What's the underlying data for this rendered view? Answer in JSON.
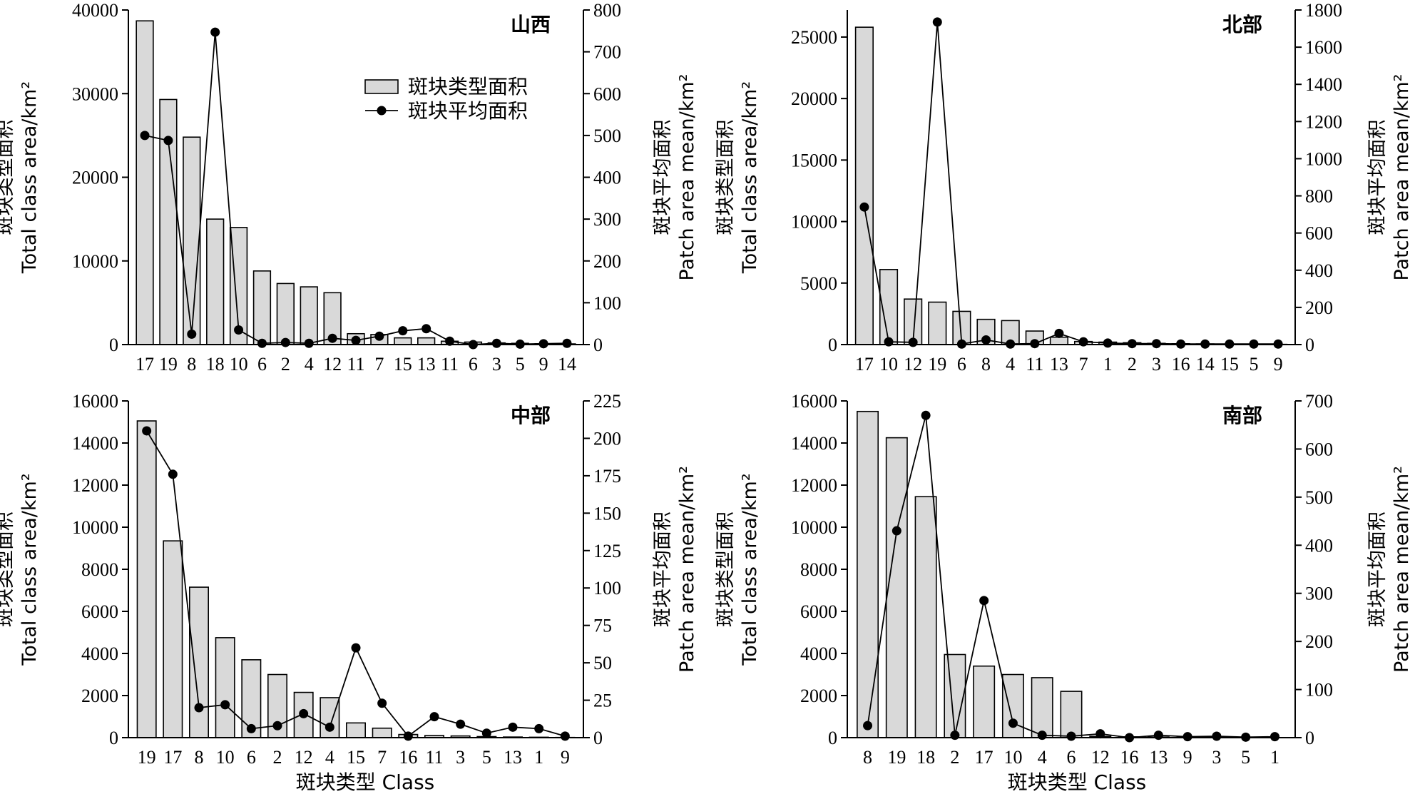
{
  "figure": {
    "x_title": "斑块类型 Class",
    "legend": {
      "bars_label": "斑块类型面积",
      "line_label": "斑块平均面积"
    }
  },
  "chart_data": [
    {
      "type": "bar",
      "title": "山西",
      "categories": [
        "17",
        "19",
        "8",
        "18",
        "10",
        "6",
        "2",
        "4",
        "12",
        "11",
        "7",
        "15",
        "13",
        "11",
        "6",
        "3",
        "5",
        "9",
        "14"
      ],
      "series": [
        {
          "name": "斑块类型面积",
          "axis": "left",
          "values": [
            38700,
            29300,
            24800,
            15000,
            14000,
            8800,
            7300,
            6900,
            6200,
            1300,
            1200,
            800,
            800,
            400,
            300,
            200,
            150,
            100,
            80
          ]
        },
        {
          "name": "斑块平均面积",
          "axis": "right",
          "type": "line",
          "values": [
            500,
            488,
            25,
            747,
            35,
            3,
            5,
            3,
            15,
            10,
            20,
            33,
            38,
            8,
            0,
            3,
            1,
            2,
            3
          ]
        }
      ],
      "ylabel": [
        "斑块类型面积",
        "Total class area/km²"
      ],
      "y2label": [
        "斑块平均面积",
        "Patch area mean/km²"
      ],
      "ylim": [
        0,
        40000
      ],
      "yticks": [
        0,
        10000,
        20000,
        30000,
        40000
      ],
      "y2lim": [
        0,
        800
      ],
      "y2ticks": [
        0,
        100,
        200,
        300,
        400,
        500,
        600,
        700,
        800
      ],
      "legend": "top-center"
    },
    {
      "type": "bar",
      "title": "北部",
      "categories": [
        "17",
        "10",
        "12",
        "19",
        "6",
        "8",
        "4",
        "11",
        "13",
        "7",
        "1",
        "2",
        "3",
        "16",
        "14",
        "15",
        "5",
        "9"
      ],
      "series": [
        {
          "name": "斑块类型面积",
          "axis": "left",
          "values": [
            25800,
            6100,
            3700,
            3450,
            2700,
            2050,
            1950,
            1100,
            600,
            250,
            200,
            150,
            100,
            70,
            50,
            40,
            30,
            20
          ]
        },
        {
          "name": "斑块平均面积",
          "axis": "right",
          "type": "line",
          "values": [
            740,
            15,
            12,
            1735,
            3,
            25,
            3,
            5,
            60,
            15,
            8,
            5,
            5,
            3,
            3,
            3,
            3,
            3
          ]
        }
      ],
      "ylabel": [
        "斑块类型面积",
        "Total class area/km²"
      ],
      "y2label": [
        "斑块平均面积",
        "Patch area mean/km²"
      ],
      "ylim": [
        0,
        27200
      ],
      "yticks": [
        0,
        5000,
        10000,
        15000,
        20000,
        25000
      ],
      "y2lim": [
        0,
        1800
      ],
      "y2ticks": [
        0,
        200,
        400,
        600,
        800,
        1000,
        1200,
        1400,
        1600,
        1800
      ]
    },
    {
      "type": "bar",
      "title": "中部",
      "categories": [
        "19",
        "17",
        "8",
        "10",
        "6",
        "2",
        "12",
        "4",
        "15",
        "7",
        "16",
        "11",
        "3",
        "5",
        "13",
        "1",
        "9"
      ],
      "series": [
        {
          "name": "斑块类型面积",
          "axis": "left",
          "values": [
            15050,
            9350,
            7150,
            4750,
            3700,
            3000,
            2150,
            1900,
            700,
            450,
            150,
            100,
            80,
            50,
            30,
            20,
            10
          ]
        },
        {
          "name": "斑块平均面积",
          "axis": "right",
          "type": "line",
          "values": [
            205,
            176,
            20,
            22,
            6,
            8,
            16,
            7,
            60,
            23,
            1,
            14,
            9,
            3,
            7,
            6,
            1
          ]
        }
      ],
      "ylabel": [
        "斑块类型面积",
        "Total class area/km²"
      ],
      "y2label": [
        "斑块平均面积",
        "Patch area mean/km²"
      ],
      "ylim": [
        0,
        16000
      ],
      "yticks": [
        0,
        2000,
        4000,
        6000,
        8000,
        10000,
        12000,
        14000,
        16000
      ],
      "y2lim": [
        0,
        225
      ],
      "y2ticks": [
        0,
        25,
        50,
        75,
        100,
        125,
        150,
        175,
        200,
        225
      ]
    },
    {
      "type": "bar",
      "title": "南部",
      "categories": [
        "8",
        "19",
        "18",
        "2",
        "17",
        "10",
        "4",
        "6",
        "12",
        "16",
        "13",
        "9",
        "3",
        "5",
        "1"
      ],
      "series": [
        {
          "name": "斑块类型面积",
          "axis": "left",
          "values": [
            15500,
            14250,
            11450,
            3950,
            3400,
            3000,
            2850,
            2200,
            60,
            40,
            30,
            20,
            15,
            10,
            5
          ]
        },
        {
          "name": "斑块平均面积",
          "axis": "right",
          "type": "line",
          "values": [
            25,
            430,
            670,
            5,
            285,
            30,
            5,
            3,
            8,
            0,
            5,
            2,
            3,
            1,
            2
          ]
        }
      ],
      "ylabel": [
        "斑块类型面积",
        "Total class area/km²"
      ],
      "y2label": [
        "斑块平均面积",
        "Patch area mean/km²"
      ],
      "ylim": [
        0,
        16000
      ],
      "yticks": [
        0,
        2000,
        4000,
        6000,
        8000,
        10000,
        12000,
        14000,
        16000
      ],
      "y2lim": [
        0,
        700
      ],
      "y2ticks": [
        0,
        100,
        200,
        300,
        400,
        500,
        600,
        700
      ]
    }
  ]
}
